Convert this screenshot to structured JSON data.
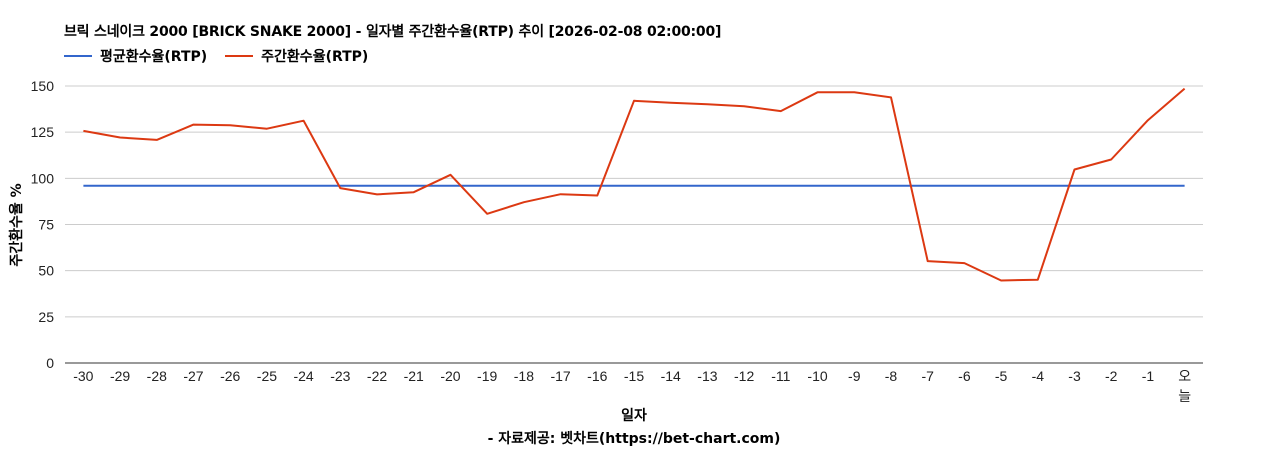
{
  "chart_data": {
    "type": "line",
    "title": "브릭 스네이크 2000 [BRICK SNAKE 2000] - 일자별 주간환수율(RTP) 추이 [2026-02-08 02:00:00]",
    "xlabel": "일자",
    "ylabel": "주간환수율 %",
    "source": "- 자료제공: 벳차트(https://bet-chart.com)",
    "ylim": [
      0,
      150
    ],
    "yticks": [
      0,
      25,
      50,
      75,
      100,
      125,
      150
    ],
    "grid": true,
    "legend_position": "top-left",
    "categories": [
      "-30",
      "-29",
      "-28",
      "-27",
      "-26",
      "-25",
      "-24",
      "-23",
      "-22",
      "-21",
      "-20",
      "-19",
      "-18",
      "-17",
      "-16",
      "-15",
      "-14",
      "-13",
      "-12",
      "-11",
      "-10",
      "-9",
      "-8",
      "-7",
      "-6",
      "-5",
      "-4",
      "-3",
      "-2",
      "-1",
      "오늘"
    ],
    "series": [
      {
        "name": "평균환수율(RTP)",
        "color": "#3366cc",
        "values": [
          96,
          96,
          96,
          96,
          96,
          96,
          96,
          96,
          96,
          96,
          96,
          96,
          96,
          96,
          96,
          96,
          96,
          96,
          96,
          96,
          96,
          96,
          96,
          96,
          96,
          96,
          96,
          96,
          96,
          96,
          96
        ]
      },
      {
        "name": "주간환수율(RTP)",
        "color": "#dc3912",
        "values": [
          125.7,
          122.1,
          120.8,
          129.1,
          128.7,
          126.9,
          131.2,
          94.7,
          91.3,
          92.5,
          101.9,
          80.8,
          87.1,
          91.4,
          90.7,
          142.0,
          140.9,
          140.1,
          139.0,
          136.4,
          146.6,
          146.6,
          143.8,
          55.2,
          54.1,
          44.7,
          45.1,
          104.8,
          110.2,
          131.5,
          148.6
        ]
      }
    ]
  },
  "legend": {
    "items": [
      {
        "label": "평균환수율(RTP)",
        "color": "#3366cc"
      },
      {
        "label": "주간환수율(RTP)",
        "color": "#dc3912"
      }
    ]
  }
}
